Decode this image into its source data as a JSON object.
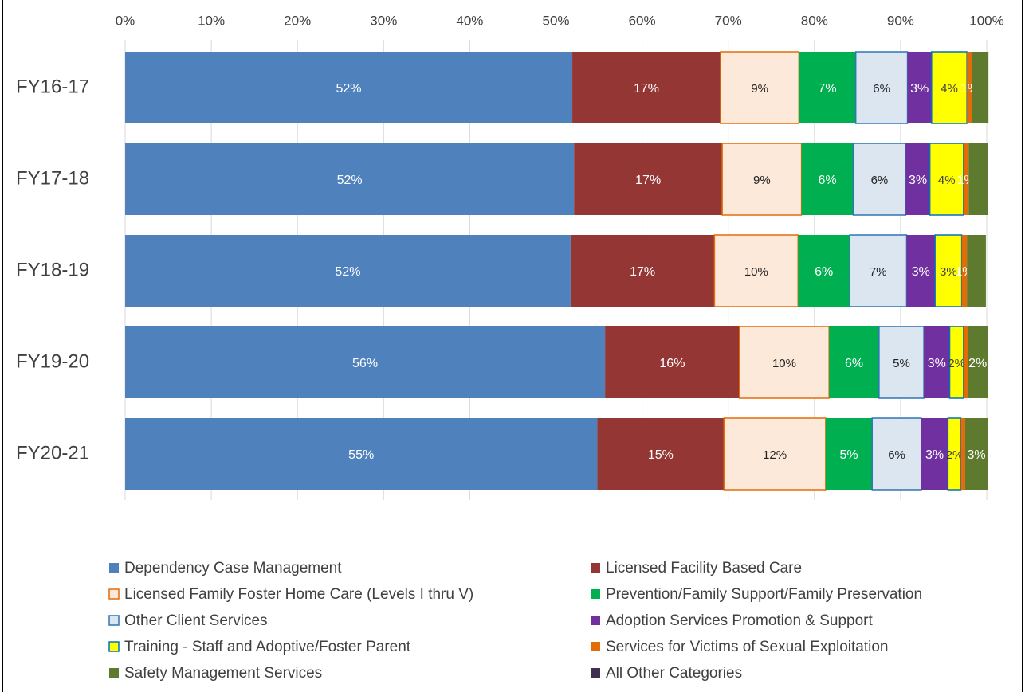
{
  "chart_data": {
    "type": "stacked_barh",
    "categories": [
      "FY16-17",
      "FY17-18",
      "FY18-19",
      "FY19-20",
      "FY20-21"
    ],
    "xlim": [
      0,
      100
    ],
    "xticks": [
      {
        "value": 0,
        "label": "0%"
      },
      {
        "value": 10,
        "label": "10%"
      },
      {
        "value": 20,
        "label": "20%"
      },
      {
        "value": 30,
        "label": "30%"
      },
      {
        "value": 40,
        "label": "40%"
      },
      {
        "value": 50,
        "label": "50%"
      },
      {
        "value": 60,
        "label": "60%"
      },
      {
        "value": 70,
        "label": "70%"
      },
      {
        "value": 80,
        "label": "80%"
      },
      {
        "value": 90,
        "label": "90%"
      },
      {
        "value": 100,
        "label": "100%"
      }
    ],
    "grid": true,
    "legend": "bottom",
    "series": [
      {
        "name": "Dependency Case Management",
        "color": "#4f81bd",
        "values": [
          51.9,
          52.1,
          51.7,
          55.7,
          54.8
        ],
        "value_labels": [
          "52%",
          "52%",
          "52%",
          "56%",
          "55%"
        ]
      },
      {
        "name": "Licensed Facility Based Care",
        "color": "#943634",
        "values": [
          17.2,
          17.2,
          16.7,
          15.6,
          14.7
        ],
        "value_labels": [
          "17%",
          "17%",
          "17%",
          "16%",
          "15%"
        ]
      },
      {
        "name": "Licensed Family Foster Home Care (Levels I thru V)",
        "color": "#fde9d9",
        "edgecolor": "#e36c09",
        "values": [
          9.1,
          9.2,
          9.7,
          10.4,
          11.8
        ],
        "value_labels": [
          "9%",
          "9%",
          "10%",
          "10%",
          "12%"
        ]
      },
      {
        "name": "Prevention/Family Support/Family Preservation",
        "color": "#00b050",
        "values": [
          6.6,
          6.0,
          6.0,
          5.8,
          5.4
        ],
        "value_labels": [
          "7%",
          "6%",
          "6%",
          "6%",
          "5%"
        ]
      },
      {
        "name": "Other Client Services",
        "color": "#dce6f1",
        "edgecolor": "#2e75b6",
        "values": [
          6.0,
          6.1,
          6.6,
          5.2,
          5.7
        ],
        "value_labels": [
          "6%",
          "6%",
          "7%",
          "5%",
          "6%"
        ]
      },
      {
        "name": "Adoption Services Promotion & Support",
        "color": "#7030a0",
        "values": [
          2.8,
          2.8,
          3.3,
          3.0,
          3.1
        ],
        "value_labels": [
          "3%",
          "3%",
          "3%",
          "3%",
          "3%"
        ]
      },
      {
        "name": "Training - Staff and Adoptive/Foster Parent",
        "color": "#ffff00",
        "edgecolor": "#0070c0",
        "values": [
          4.1,
          3.9,
          3.1,
          1.6,
          1.5
        ],
        "value_labels": [
          "4%",
          "4%",
          "3%",
          "2%",
          "2%"
        ]
      },
      {
        "name": "Services for Victims of Sexual Exploitation",
        "color": "#e36c09",
        "values": [
          0.6,
          0.6,
          0.6,
          0.5,
          0.5
        ],
        "value_labels": [
          "1%",
          "1%",
          "1%",
          null,
          null
        ]
      },
      {
        "name": "Safety Management Services",
        "color": "#5e7a2f",
        "values": [
          1.9,
          2.2,
          2.2,
          2.3,
          2.6
        ],
        "value_labels": [
          null,
          null,
          null,
          "2%",
          "3%"
        ]
      },
      {
        "name": "All Other Categories",
        "color": "#403152",
        "values": [
          0,
          0,
          0,
          0,
          0
        ],
        "value_labels": [
          null,
          null,
          null,
          null,
          null
        ]
      }
    ]
  }
}
